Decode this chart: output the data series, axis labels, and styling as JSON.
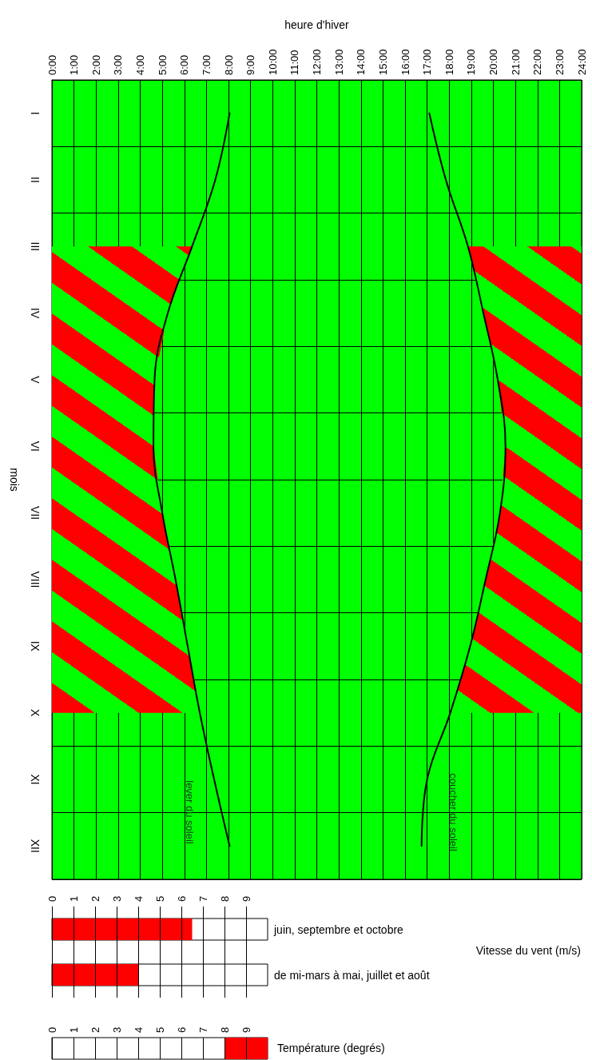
{
  "chart_data": [
    {
      "type": "line",
      "orientation": "horizontal",
      "xlabel": "heure d'hiver",
      "ylabel": "mois",
      "xlim": [
        0,
        24
      ],
      "xticks": [
        {
          "value": 0,
          "label": "0:00"
        },
        {
          "value": 1,
          "label": "1:00"
        },
        {
          "value": 2,
          "label": "2:00"
        },
        {
          "value": 3,
          "label": "3:00"
        },
        {
          "value": 4,
          "label": "4:00"
        },
        {
          "value": 5,
          "label": "5:00"
        },
        {
          "value": 6,
          "label": "6:00"
        },
        {
          "value": 7,
          "label": "7:00"
        },
        {
          "value": 8,
          "label": "8:00"
        },
        {
          "value": 9,
          "label": "9:00"
        },
        {
          "value": 10,
          "label": "10:00"
        },
        {
          "value": 11,
          "label": "11:00"
        },
        {
          "value": 12,
          "label": "12:00"
        },
        {
          "value": 13,
          "label": "13:00"
        },
        {
          "value": 14,
          "label": "14:00"
        },
        {
          "value": 15,
          "label": "15:00"
        },
        {
          "value": 16,
          "label": "16:00"
        },
        {
          "value": 17,
          "label": "17:00"
        },
        {
          "value": 18,
          "label": "18:00"
        },
        {
          "value": 19,
          "label": "19:00"
        },
        {
          "value": 20,
          "label": "20:00"
        },
        {
          "value": 21,
          "label": "21:00"
        },
        {
          "value": 22,
          "label": "22:00"
        },
        {
          "value": 23,
          "label": "23:00"
        },
        {
          "value": 24,
          "label": "24:00"
        }
      ],
      "categories": [
        "I",
        "II",
        "III",
        "IV",
        "V",
        "VI",
        "VII",
        "VIII",
        "IX",
        "X",
        "XI",
        "XII"
      ],
      "grid": true,
      "marker": "none",
      "line_style": "solid",
      "series": [
        {
          "color": "#000000",
          "values": [
            8.05,
            7.4,
            6.35,
            5.25,
            4.65,
            4.6,
            5.0,
            5.6,
            6.15,
            6.7,
            7.35,
            8.05
          ],
          "lower": [
            null,
            null,
            0,
            0,
            0,
            0,
            0,
            0,
            0,
            0,
            null,
            null
          ],
          "upper": [
            null,
            null,
            6.35,
            5.25,
            4.65,
            4.6,
            5.0,
            5.6,
            6.15,
            6.7,
            null,
            null
          ]
        },
        {
          "color": "#000000",
          "values": [
            17.1,
            17.85,
            18.85,
            19.55,
            20.2,
            20.55,
            20.3,
            19.65,
            18.95,
            18.05,
            17.0,
            16.75
          ],
          "lower": [
            null,
            null,
            18.85,
            19.55,
            20.2,
            20.55,
            20.3,
            19.65,
            18.95,
            18.05,
            null,
            null
          ],
          "upper": [
            null,
            null,
            24,
            24,
            24,
            24,
            24,
            24,
            24,
            24,
            null,
            null
          ]
        }
      ],
      "annotations": [
        "lever du soleil",
        "coucher du soleil"
      ]
    },
    {
      "type": "bar",
      "orientation": "horizontal",
      "categories": [
        "juin, septembre et octobre",
        "de mi-mars à mai, juillet et août"
      ],
      "values": [
        6.5,
        4
      ],
      "color": "#ff0000",
      "xlim": [
        0,
        10
      ],
      "xticks": [
        0,
        1,
        2,
        3,
        4,
        5,
        6,
        7,
        8,
        9
      ],
      "xlabel": "Vitesse du vent (m/s)",
      "grid": "x"
    },
    {
      "type": "bar",
      "orientation": "horizontal",
      "categories": [
        null
      ],
      "values": [
        2
      ],
      "base": [
        8
      ],
      "color": "#ff0000",
      "xlim": [
        0,
        10
      ],
      "xticks": [
        0,
        1,
        2,
        3,
        4,
        5,
        6,
        7,
        8,
        9
      ],
      "xlabel": "Température (degrés)",
      "grid": "x"
    }
  ]
}
